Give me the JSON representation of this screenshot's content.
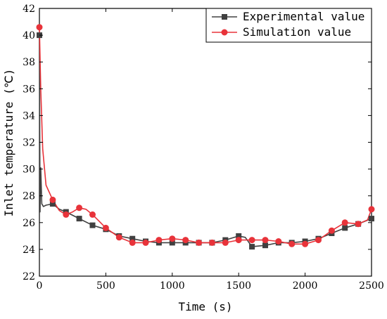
{
  "chart_data": {
    "type": "line",
    "title": "",
    "xlabel": "Time (s)",
    "ylabel": "Inlet temperature (℃)",
    "xlim": [
      0,
      2500
    ],
    "ylim": [
      22,
      42
    ],
    "xticks": [
      0,
      500,
      1000,
      1500,
      2000,
      2500
    ],
    "yticks": [
      22,
      24,
      26,
      28,
      30,
      32,
      34,
      36,
      38,
      40,
      42
    ],
    "grid": false,
    "legend_position": "top-right",
    "series": [
      {
        "name": "Experimental value",
        "color": "#404040",
        "marker": "square",
        "line": [
          [
            0,
            40.0
          ],
          [
            5,
            26.8
          ],
          [
            10,
            30.1
          ],
          [
            18,
            27.4
          ],
          [
            30,
            27.2
          ],
          [
            50,
            27.3
          ],
          [
            100,
            27.4
          ],
          [
            150,
            27.0
          ],
          [
            200,
            26.8
          ],
          [
            300,
            26.3
          ],
          [
            400,
            25.8
          ],
          [
            500,
            25.5
          ],
          [
            600,
            25.0
          ],
          [
            700,
            24.8
          ],
          [
            800,
            24.6
          ],
          [
            900,
            24.5
          ],
          [
            1000,
            24.5
          ],
          [
            1100,
            24.5
          ],
          [
            1200,
            24.5
          ],
          [
            1300,
            24.5
          ],
          [
            1400,
            24.7
          ],
          [
            1500,
            25.0
          ],
          [
            1550,
            24.9
          ],
          [
            1600,
            24.2
          ],
          [
            1700,
            24.3
          ],
          [
            1800,
            24.5
          ],
          [
            1900,
            24.5
          ],
          [
            2000,
            24.6
          ],
          [
            2100,
            24.8
          ],
          [
            2200,
            25.2
          ],
          [
            2300,
            25.6
          ],
          [
            2400,
            25.9
          ],
          [
            2500,
            26.3
          ]
        ],
        "markers": [
          [
            0,
            40.0
          ],
          [
            100,
            27.4
          ],
          [
            200,
            26.8
          ],
          [
            300,
            26.3
          ],
          [
            400,
            25.8
          ],
          [
            500,
            25.5
          ],
          [
            600,
            25.0
          ],
          [
            700,
            24.8
          ],
          [
            800,
            24.6
          ],
          [
            900,
            24.5
          ],
          [
            1000,
            24.5
          ],
          [
            1100,
            24.5
          ],
          [
            1200,
            24.5
          ],
          [
            1300,
            24.5
          ],
          [
            1400,
            24.7
          ],
          [
            1500,
            25.0
          ],
          [
            1600,
            24.2
          ],
          [
            1700,
            24.3
          ],
          [
            1800,
            24.5
          ],
          [
            1900,
            24.5
          ],
          [
            2000,
            24.6
          ],
          [
            2100,
            24.8
          ],
          [
            2200,
            25.2
          ],
          [
            2300,
            25.6
          ],
          [
            2400,
            25.9
          ],
          [
            2500,
            26.3
          ]
        ]
      },
      {
        "name": "Simulation value",
        "color": "#e8333a",
        "marker": "circle",
        "line": [
          [
            0,
            40.6
          ],
          [
            10,
            36.0
          ],
          [
            25,
            31.5
          ],
          [
            50,
            28.8
          ],
          [
            100,
            27.7
          ],
          [
            150,
            26.9
          ],
          [
            200,
            26.6
          ],
          [
            250,
            26.8
          ],
          [
            300,
            27.1
          ],
          [
            350,
            27.0
          ],
          [
            400,
            26.6
          ],
          [
            450,
            26.1
          ],
          [
            500,
            25.6
          ],
          [
            600,
            24.9
          ],
          [
            700,
            24.5
          ],
          [
            800,
            24.5
          ],
          [
            900,
            24.7
          ],
          [
            1000,
            24.8
          ],
          [
            1100,
            24.7
          ],
          [
            1200,
            24.5
          ],
          [
            1300,
            24.5
          ],
          [
            1400,
            24.5
          ],
          [
            1500,
            24.7
          ],
          [
            1600,
            24.7
          ],
          [
            1700,
            24.7
          ],
          [
            1800,
            24.6
          ],
          [
            1900,
            24.4
          ],
          [
            2000,
            24.4
          ],
          [
            2100,
            24.7
          ],
          [
            2200,
            25.4
          ],
          [
            2300,
            26.0
          ],
          [
            2400,
            25.9
          ],
          [
            2470,
            26.2
          ],
          [
            2500,
            27.0
          ]
        ],
        "markers": [
          [
            0,
            40.6
          ],
          [
            100,
            27.7
          ],
          [
            200,
            26.6
          ],
          [
            300,
            27.1
          ],
          [
            400,
            26.6
          ],
          [
            500,
            25.6
          ],
          [
            600,
            24.9
          ],
          [
            700,
            24.5
          ],
          [
            800,
            24.5
          ],
          [
            900,
            24.7
          ],
          [
            1000,
            24.8
          ],
          [
            1100,
            24.7
          ],
          [
            1200,
            24.5
          ],
          [
            1300,
            24.5
          ],
          [
            1400,
            24.5
          ],
          [
            1500,
            24.7
          ],
          [
            1600,
            24.7
          ],
          [
            1700,
            24.7
          ],
          [
            1800,
            24.6
          ],
          [
            1900,
            24.4
          ],
          [
            2000,
            24.4
          ],
          [
            2100,
            24.7
          ],
          [
            2200,
            25.4
          ],
          [
            2300,
            26.0
          ],
          [
            2400,
            25.9
          ],
          [
            2500,
            27.0
          ]
        ]
      }
    ]
  }
}
